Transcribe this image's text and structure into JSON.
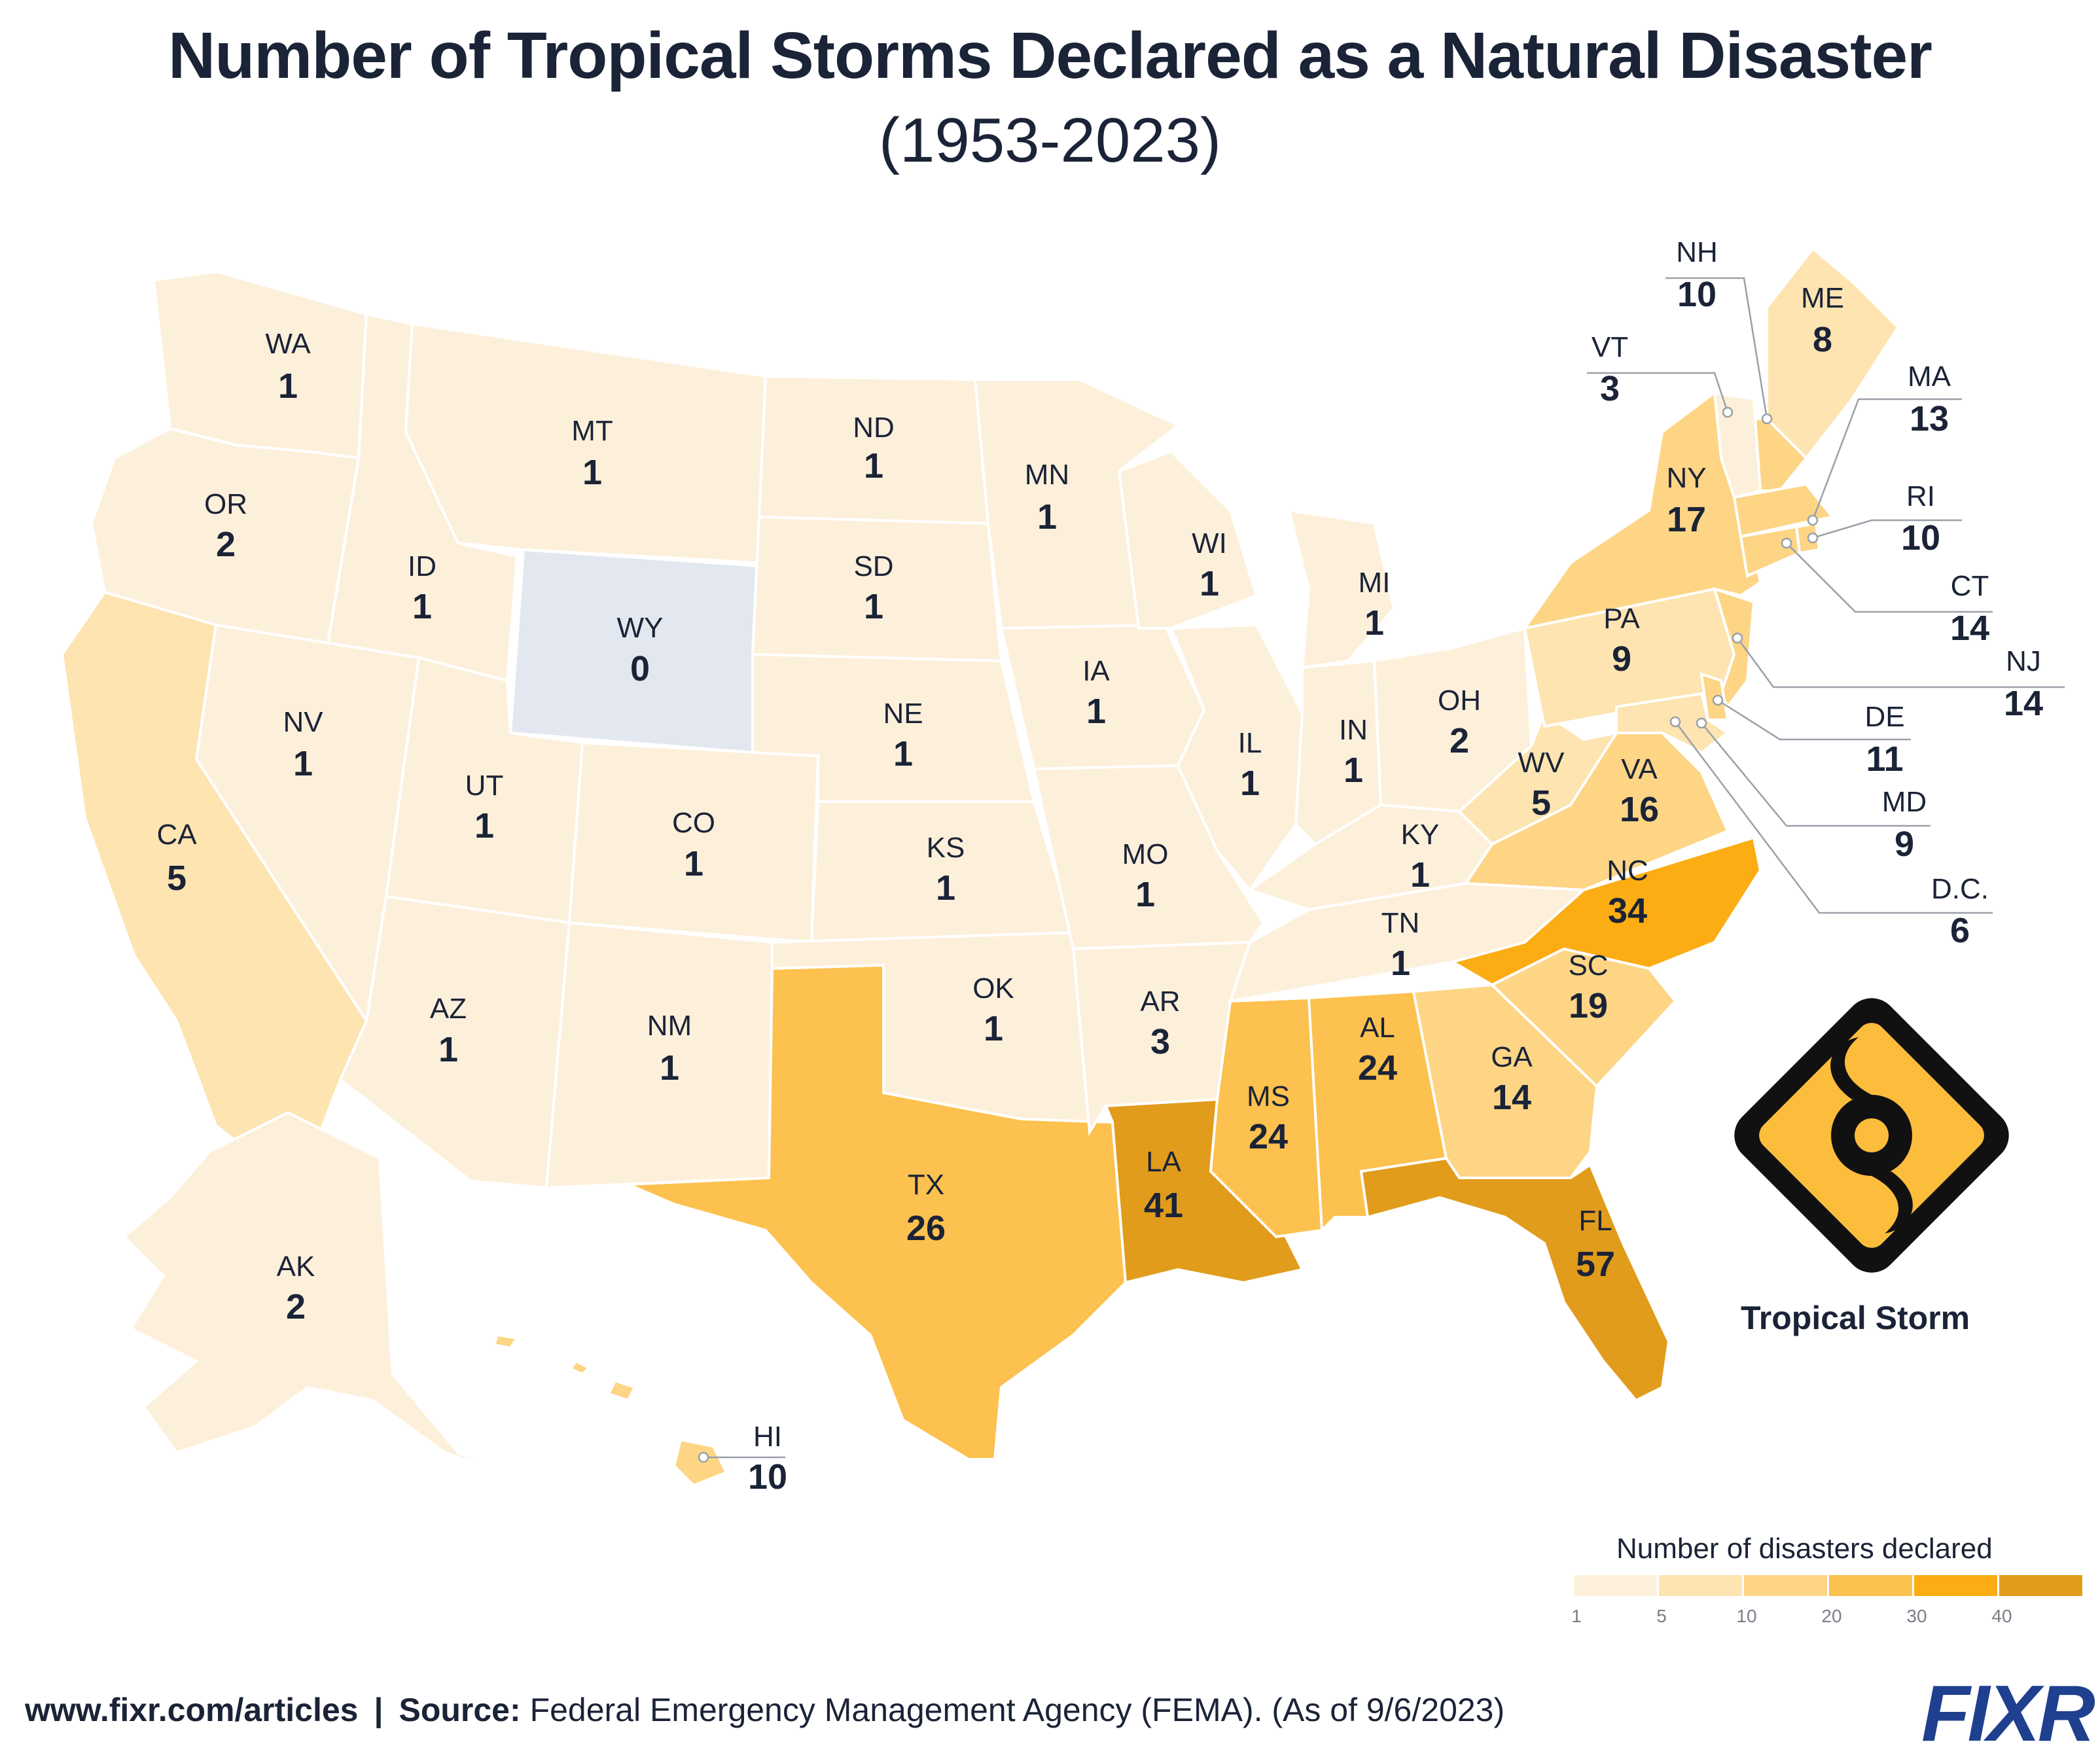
{
  "header": {
    "title": "Number of Tropical Storms Declared as a Natural Disaster",
    "subtitle": "(1953-2023)"
  },
  "symbol": {
    "icon": "tropical-storm-icon",
    "label": "Tropical Storm",
    "colors": {
      "fill": "#fdbd3c",
      "stroke": "#111111"
    }
  },
  "legend": {
    "title": "Number of disasters declared",
    "ticks": [
      "1",
      "5",
      "10",
      "20",
      "30",
      "40"
    ],
    "colors": [
      "#fdf0db",
      "#fde4b0",
      "#fdd585",
      "#fcc14e",
      "#fcad13",
      "#e19c1b"
    ]
  },
  "footer": {
    "url": "www.fixr.com/articles",
    "separator": "|",
    "source_label": "Source:",
    "source_text": "Federal Emergency Management Agency (FEMA). (As of 9/6/2023)"
  },
  "brand": {
    "logo": "FIXR",
    "color": "#1f3f8f"
  },
  "colors": {
    "zero": "#e3e8f0",
    "border": "#ffffff",
    "leader": "#9aa0a8"
  },
  "states": [
    {
      "abbr": "WA",
      "value": "1"
    },
    {
      "abbr": "OR",
      "value": "2"
    },
    {
      "abbr": "CA",
      "value": "5"
    },
    {
      "abbr": "ID",
      "value": "1"
    },
    {
      "abbr": "NV",
      "value": "1"
    },
    {
      "abbr": "MT",
      "value": "1"
    },
    {
      "abbr": "WY",
      "value": "0"
    },
    {
      "abbr": "UT",
      "value": "1"
    },
    {
      "abbr": "AZ",
      "value": "1"
    },
    {
      "abbr": "CO",
      "value": "1"
    },
    {
      "abbr": "NM",
      "value": "1"
    },
    {
      "abbr": "ND",
      "value": "1"
    },
    {
      "abbr": "SD",
      "value": "1"
    },
    {
      "abbr": "NE",
      "value": "1"
    },
    {
      "abbr": "KS",
      "value": "1"
    },
    {
      "abbr": "OK",
      "value": "1"
    },
    {
      "abbr": "TX",
      "value": "26"
    },
    {
      "abbr": "MN",
      "value": "1"
    },
    {
      "abbr": "IA",
      "value": "1"
    },
    {
      "abbr": "MO",
      "value": "1"
    },
    {
      "abbr": "AR",
      "value": "3"
    },
    {
      "abbr": "LA",
      "value": "41"
    },
    {
      "abbr": "WI",
      "value": "1"
    },
    {
      "abbr": "IL",
      "value": "1"
    },
    {
      "abbr": "MI",
      "value": "1"
    },
    {
      "abbr": "IN",
      "value": "1"
    },
    {
      "abbr": "OH",
      "value": "2"
    },
    {
      "abbr": "KY",
      "value": "1"
    },
    {
      "abbr": "TN",
      "value": "1"
    },
    {
      "abbr": "MS",
      "value": "24"
    },
    {
      "abbr": "AL",
      "value": "24"
    },
    {
      "abbr": "GA",
      "value": "14"
    },
    {
      "abbr": "FL",
      "value": "57"
    },
    {
      "abbr": "SC",
      "value": "19"
    },
    {
      "abbr": "NC",
      "value": "34"
    },
    {
      "abbr": "VA",
      "value": "16"
    },
    {
      "abbr": "WV",
      "value": "5"
    },
    {
      "abbr": "PA",
      "value": "9"
    },
    {
      "abbr": "NY",
      "value": "17"
    },
    {
      "abbr": "ME",
      "value": "8"
    },
    {
      "abbr": "AK",
      "value": "2"
    },
    {
      "abbr": "HI",
      "value": "10"
    },
    {
      "abbr": "NH",
      "value": "10"
    },
    {
      "abbr": "VT",
      "value": "3"
    },
    {
      "abbr": "MA",
      "value": "13"
    },
    {
      "abbr": "RI",
      "value": "10"
    },
    {
      "abbr": "CT",
      "value": "14"
    },
    {
      "abbr": "NJ",
      "value": "14"
    },
    {
      "abbr": "DE",
      "value": "11"
    },
    {
      "abbr": "MD",
      "value": "9"
    },
    {
      "abbr": "D.C.",
      "value": "6"
    }
  ]
}
